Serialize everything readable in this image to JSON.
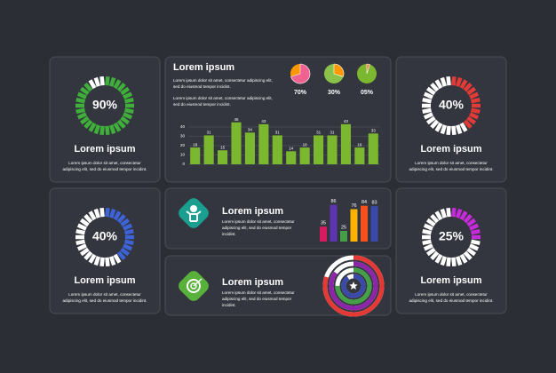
{
  "gauges": [
    {
      "value": 90,
      "label": "90%",
      "color": "#3fae3a",
      "title": "Lorem ipsum",
      "text": [
        "Lorem ipsum dolor sit amet, consectetur",
        "adipiscing elit, sed do eiusmod tempor incidint."
      ]
    },
    {
      "value": 40,
      "label": "40%",
      "color": "#e23a36",
      "title": "Lorem ipsum",
      "text": [
        "Lorem ipsum dolor sit amet, consectetur",
        "adipiscing elit, sed do eiusmod tempor incidint."
      ]
    },
    {
      "value": 40,
      "label": "40%",
      "color": "#3d63d6",
      "title": "Lorem ipsum",
      "text": [
        "Lorem ipsum dolor sit amet, consectetur",
        "adipiscing elit, sed do eiusmod tempor incidint."
      ]
    },
    {
      "value": 25,
      "label": "25%",
      "color": "#c52bd8",
      "title": "Lorem ipsum",
      "text": [
        "Lorem ipsum dolor sit amet, consectetur",
        "adipiscing elit, sed do eiusmod tempor incidint."
      ]
    }
  ],
  "bar_panel": {
    "title": "Lorem ipsum",
    "text": [
      "Lorem ipsum dolor sit amet, consectetur adipiscing elit,",
      "sed do eiusmod tempor incidint.",
      "Lorem ipsum dolor sit amet, consectetur adipiscing elit,",
      "sed do eiusmod tempor incidint."
    ],
    "pies": [
      {
        "value": 70,
        "label": "70%",
        "color": "#f06292",
        "rest": "#ff9800"
      },
      {
        "value": 30,
        "label": "30%",
        "color": "#ff9800",
        "rest": "#8bc34a"
      },
      {
        "value": 5,
        "label": "05%",
        "color": "#ff7043",
        "rest": "#7cb82f"
      }
    ],
    "chart": {
      "type": "bar",
      "categories": [
        null,
        null,
        null,
        null,
        null,
        null,
        null,
        null,
        null,
        null,
        null,
        null,
        null,
        null
      ],
      "values": [
        18,
        31,
        15,
        45,
        34,
        43,
        31,
        14,
        18,
        31,
        31,
        43,
        18,
        33
      ],
      "color": "#7cb82f",
      "ylim": [
        0,
        40
      ],
      "yticks": [
        0,
        10,
        20,
        30,
        40
      ],
      "grid": true
    }
  },
  "mini_panel": {
    "title": "Lorem ipsum",
    "text": [
      "Lorem ipsum dolor sit amet, consectetur",
      "adipiscing elit, sed do eiusmod tempor",
      "incidint."
    ],
    "chart": {
      "type": "bar",
      "values": [
        35,
        86,
        25,
        76,
        84,
        83
      ],
      "colors": [
        "#d81b60",
        "#5e35b1",
        "#43a047",
        "#ffb300",
        "#f4511e",
        "#3949ab"
      ],
      "ylim": [
        0,
        100
      ]
    }
  },
  "ring_panel": {
    "title": "Lorem ipsum",
    "text": [
      "Lorem ipsum dolor sit amet, consectetur",
      "adipiscing elit, sed do eiusmod tempor",
      "incidint."
    ],
    "chart": {
      "type": "radial",
      "values": [
        80,
        85,
        75,
        90
      ],
      "colors": [
        "#e53935",
        "#8e24aa",
        "#43a047",
        "#3949ab"
      ],
      "ylim": [
        0,
        100
      ]
    }
  }
}
